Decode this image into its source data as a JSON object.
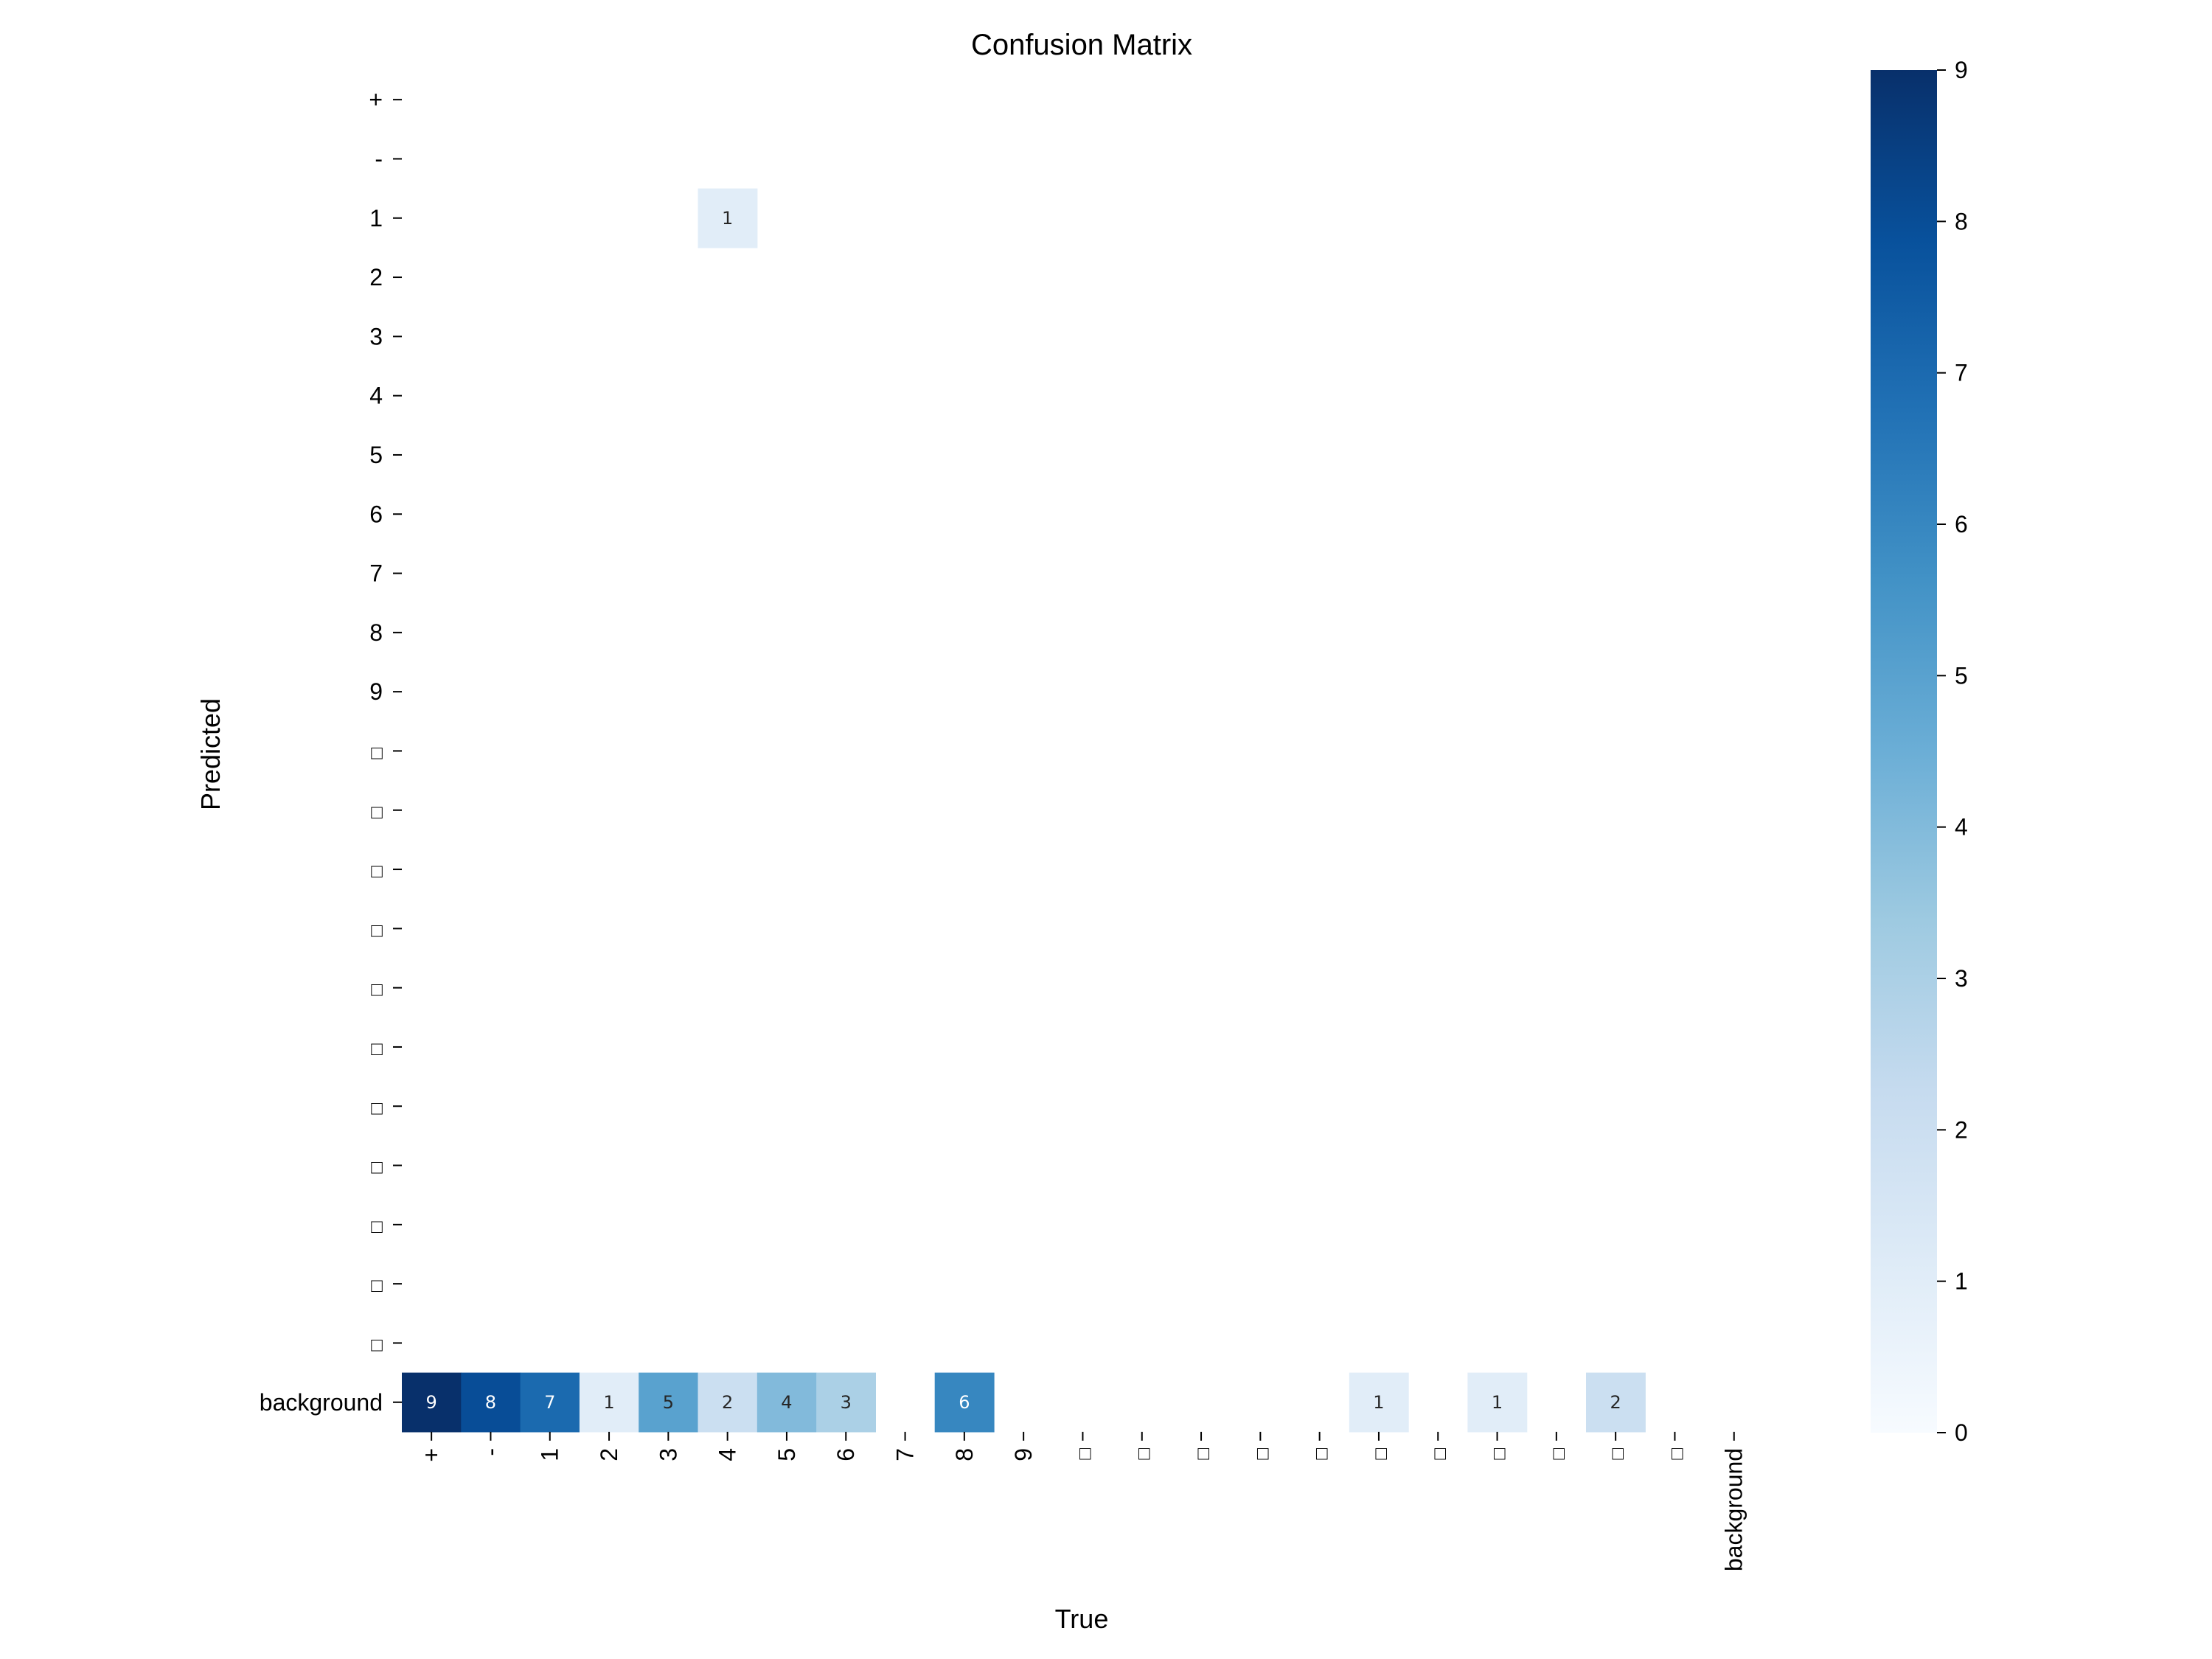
{
  "chart_data": {
    "type": "heatmap",
    "title": "Confusion Matrix",
    "xlabel": "True",
    "ylabel": "Predicted",
    "x_categories": [
      "+",
      "-",
      "1",
      "2",
      "3",
      "4",
      "5",
      "6",
      "7",
      "8",
      "9",
      "□",
      "□",
      "□",
      "□",
      "□",
      "□",
      "□",
      "□",
      "□",
      "□",
      "□",
      "background"
    ],
    "y_categories": [
      "+",
      "-",
      "1",
      "2",
      "3",
      "4",
      "5",
      "6",
      "7",
      "8",
      "9",
      "□",
      "□",
      "□",
      "□",
      "□",
      "□",
      "□",
      "□",
      "□",
      "□",
      "□",
      "background"
    ],
    "cells": [
      {
        "row": 2,
        "col": 5,
        "value": 1
      },
      {
        "row": 22,
        "col": 0,
        "value": 9
      },
      {
        "row": 22,
        "col": 1,
        "value": 8
      },
      {
        "row": 22,
        "col": 2,
        "value": 7
      },
      {
        "row": 22,
        "col": 3,
        "value": 1
      },
      {
        "row": 22,
        "col": 4,
        "value": 5
      },
      {
        "row": 22,
        "col": 5,
        "value": 2
      },
      {
        "row": 22,
        "col": 6,
        "value": 4
      },
      {
        "row": 22,
        "col": 7,
        "value": 3
      },
      {
        "row": 22,
        "col": 9,
        "value": 6
      },
      {
        "row": 22,
        "col": 16,
        "value": 1
      },
      {
        "row": 22,
        "col": 18,
        "value": 1
      },
      {
        "row": 22,
        "col": 20,
        "value": 2
      }
    ],
    "zero_cells_hidden": true,
    "colormap": "Blues",
    "colorbar": {
      "range": [
        0,
        9
      ],
      "ticks": [
        0,
        1,
        2,
        3,
        4,
        5,
        6,
        7,
        8,
        9
      ],
      "position": "right"
    },
    "grid": false
  }
}
